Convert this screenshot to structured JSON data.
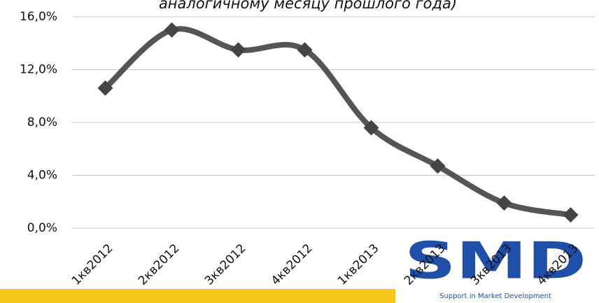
{
  "chart_data": {
    "type": "line",
    "title": "аналогичному месяцу прошлого года)",
    "categories": [
      "1кв2012",
      "2кв2012",
      "3кв2012",
      "4кв2012",
      "1кв2013",
      "2кв2013",
      "3кв2013",
      "4кв2013"
    ],
    "series": [
      {
        "name": "",
        "color": "#555555",
        "values": [
          10.6,
          15.0,
          13.5,
          13.5,
          7.6,
          4.7,
          1.9,
          1.0
        ]
      }
    ],
    "ylim": [
      0,
      16
    ],
    "yticks": [
      {
        "value": 0,
        "label": "0,0%"
      },
      {
        "value": 4,
        "label": "4,0%"
      },
      {
        "value": 8,
        "label": "8,0%"
      },
      {
        "value": 12,
        "label": "12,0%"
      },
      {
        "value": 16,
        "label": "16,0%"
      }
    ],
    "grid": true
  },
  "logo": {
    "text": "SMD",
    "subtitle": "Support in Market Development"
  }
}
